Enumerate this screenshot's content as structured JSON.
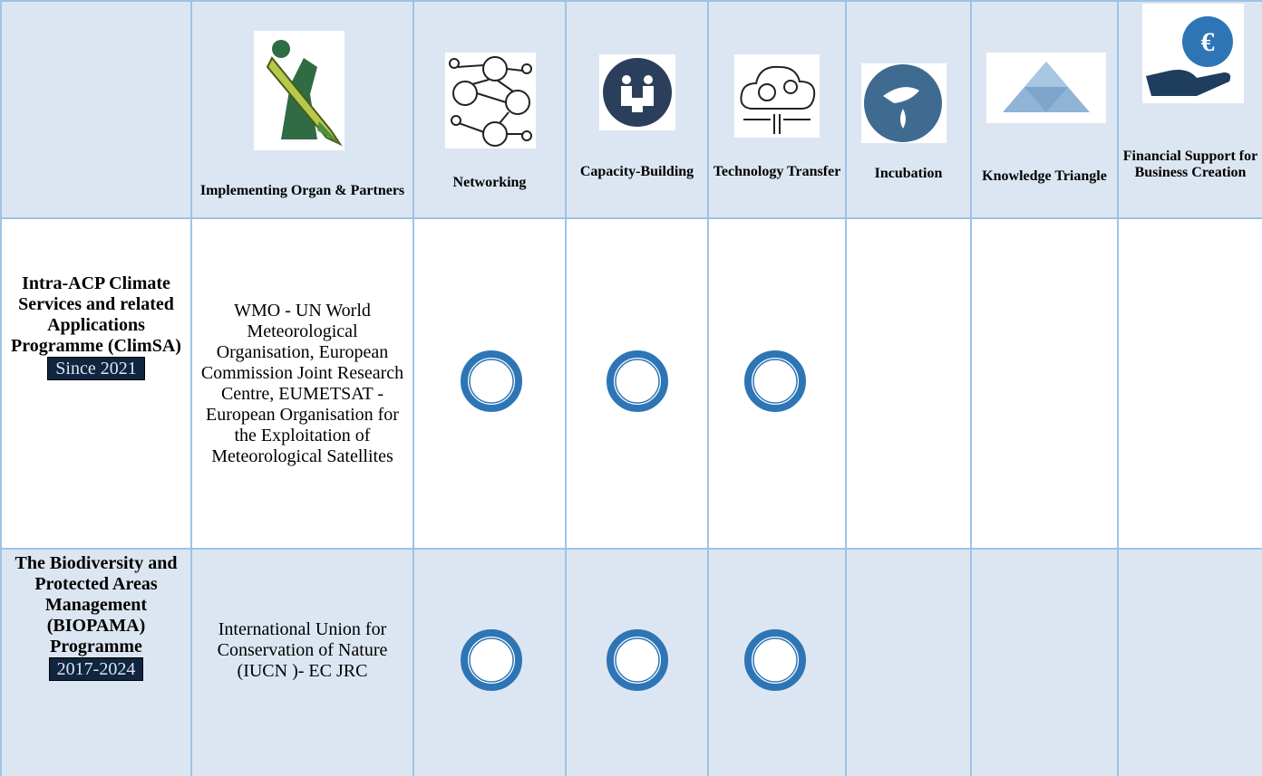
{
  "table": {
    "header": [
      "Implementing Organ & Partners",
      "Networking",
      "Capacity-Building",
      "Technology Transfer",
      "Incubation",
      "Knowledge Triangle",
      "Financial Support for Business Creation"
    ],
    "rows": [
      {
        "programme": "Intra-ACP Climate Services and related Applications Programme (ClimSA)",
        "period": "Since 2021",
        "partners": "WMO - UN World Meteorological Organisation, European Commission Joint Research Centre, EUMETSAT - European Organisation for the Exploitation of Meteorological Satellites"
      },
      {
        "programme": "The Biodiversity and Protected Areas Management (BIOPAMA) Programme",
        "period": "2017-2024",
        "partners": "International Union for Conservation of Nature (IUCN )- EC JRC"
      }
    ]
  }
}
